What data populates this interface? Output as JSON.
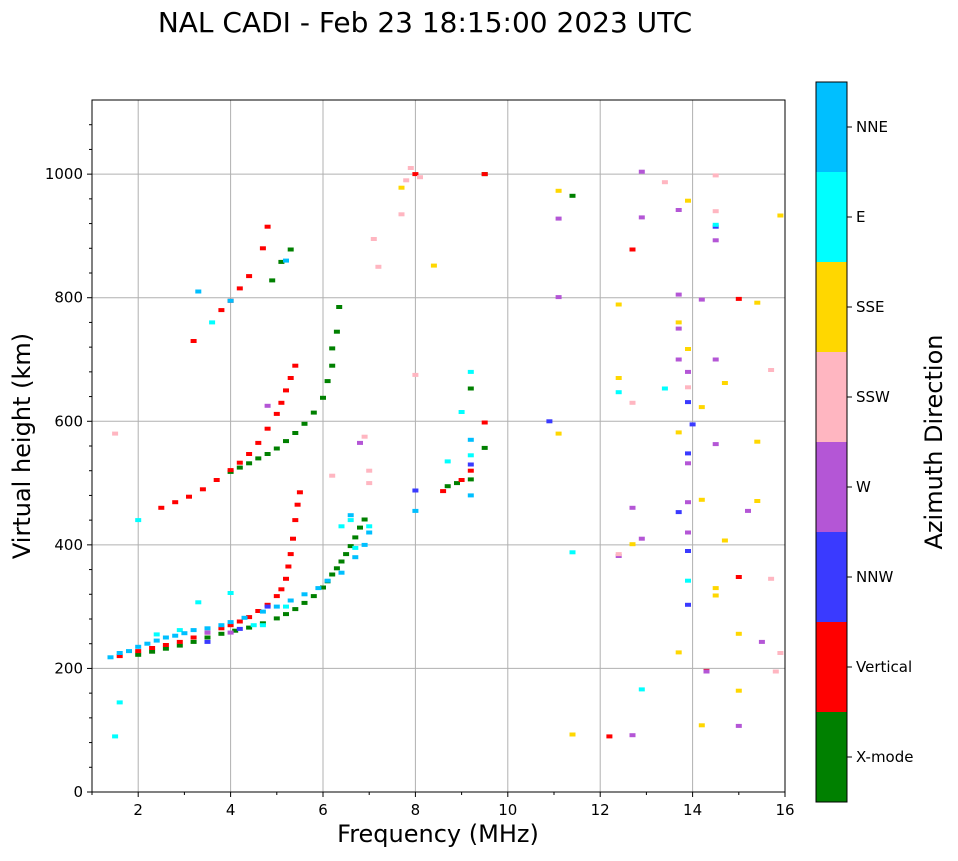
{
  "chart_data": {
    "type": "scatter",
    "title": "NAL CADI - Feb 23 18:15:00 2023 UTC",
    "xlabel": "Frequency (MHz)",
    "ylabel": "Virtual height (km)",
    "xlim": [
      1,
      16
    ],
    "ylim": [
      0,
      1120
    ],
    "xticks": [
      2,
      4,
      6,
      8,
      10,
      12,
      14,
      16
    ],
    "yticks": [
      0,
      200,
      400,
      600,
      800,
      1000
    ],
    "grid": true,
    "colorbar": {
      "label": "Azimuth Direction",
      "categories": [
        {
          "name": "X-mode",
          "color": "#008000"
        },
        {
          "name": "Vertical",
          "color": "#ff0000"
        },
        {
          "name": "NNW",
          "color": "#3a3aff"
        },
        {
          "name": "W",
          "color": "#b456d6"
        },
        {
          "name": "SSW",
          "color": "#ffb6c1"
        },
        {
          "name": "SSE",
          "color": "#ffd700"
        },
        {
          "name": "E",
          "color": "#00ffff"
        },
        {
          "name": "NNE",
          "color": "#00bfff"
        }
      ]
    },
    "series": [
      {
        "name": "X-mode",
        "color": "#008000",
        "points": [
          [
            2.0,
            222
          ],
          [
            2.3,
            227
          ],
          [
            2.6,
            232
          ],
          [
            2.9,
            237
          ],
          [
            3.2,
            243
          ],
          [
            3.5,
            250
          ],
          [
            3.8,
            256
          ],
          [
            4.1,
            261
          ],
          [
            4.4,
            266
          ],
          [
            4.7,
            273
          ],
          [
            5.0,
            281
          ],
          [
            5.2,
            288
          ],
          [
            5.4,
            296
          ],
          [
            5.6,
            306
          ],
          [
            5.8,
            317
          ],
          [
            6.0,
            331
          ],
          [
            6.1,
            341
          ],
          [
            6.2,
            352
          ],
          [
            6.3,
            362
          ],
          [
            6.4,
            373
          ],
          [
            6.5,
            385
          ],
          [
            6.6,
            398
          ],
          [
            6.7,
            412
          ],
          [
            6.8,
            428
          ],
          [
            6.9,
            441
          ],
          [
            4.0,
            518
          ],
          [
            4.2,
            525
          ],
          [
            4.4,
            532
          ],
          [
            4.6,
            540
          ],
          [
            4.8,
            547
          ],
          [
            5.0,
            556
          ],
          [
            5.2,
            568
          ],
          [
            5.4,
            581
          ],
          [
            5.6,
            596
          ],
          [
            5.8,
            614
          ],
          [
            6.0,
            638
          ],
          [
            6.1,
            665
          ],
          [
            6.2,
            690
          ],
          [
            6.2,
            718
          ],
          [
            6.3,
            745
          ],
          [
            6.35,
            785
          ],
          [
            5.1,
            858
          ],
          [
            5.3,
            878
          ],
          [
            4.9,
            828
          ],
          [
            8.7,
            495
          ],
          [
            8.9,
            500
          ],
          [
            9.2,
            506
          ],
          [
            9.2,
            653
          ],
          [
            9.5,
            557
          ],
          [
            11.4,
            965
          ],
          [
            9.5,
            1000
          ]
        ]
      },
      {
        "name": "Vertical",
        "color": "#ff0000",
        "points": [
          [
            1.6,
            220
          ],
          [
            2.0,
            228
          ],
          [
            2.3,
            233
          ],
          [
            2.6,
            238
          ],
          [
            2.9,
            243
          ],
          [
            3.2,
            250
          ],
          [
            3.5,
            258
          ],
          [
            3.8,
            265
          ],
          [
            4.0,
            270
          ],
          [
            4.2,
            276
          ],
          [
            4.4,
            283
          ],
          [
            4.6,
            293
          ],
          [
            4.8,
            303
          ],
          [
            5.0,
            317
          ],
          [
            5.1,
            328
          ],
          [
            5.2,
            345
          ],
          [
            5.25,
            365
          ],
          [
            5.3,
            385
          ],
          [
            5.35,
            410
          ],
          [
            5.4,
            440
          ],
          [
            5.45,
            465
          ],
          [
            5.5,
            485
          ],
          [
            2.5,
            460
          ],
          [
            2.8,
            469
          ],
          [
            3.1,
            478
          ],
          [
            3.4,
            490
          ],
          [
            3.7,
            505
          ],
          [
            4.0,
            521
          ],
          [
            4.2,
            533
          ],
          [
            4.4,
            547
          ],
          [
            4.6,
            565
          ],
          [
            4.8,
            588
          ],
          [
            5.0,
            612
          ],
          [
            5.1,
            630
          ],
          [
            5.2,
            650
          ],
          [
            5.3,
            670
          ],
          [
            5.4,
            690
          ],
          [
            3.2,
            730
          ],
          [
            3.8,
            780
          ],
          [
            4.0,
            795
          ],
          [
            4.2,
            815
          ],
          [
            4.4,
            835
          ],
          [
            4.7,
            880
          ],
          [
            4.8,
            915
          ],
          [
            8.6,
            487
          ],
          [
            9.0,
            505
          ],
          [
            9.2,
            520
          ],
          [
            9.5,
            598
          ],
          [
            9.5,
            1000
          ],
          [
            8.0,
            1000
          ],
          [
            12.2,
            90
          ],
          [
            12.7,
            878
          ],
          [
            15.0,
            348
          ],
          [
            15.0,
            798
          ],
          [
            14.3,
            196
          ]
        ]
      },
      {
        "name": "NNW",
        "color": "#3a3aff",
        "points": [
          [
            3.5,
            243
          ],
          [
            4.2,
            264
          ],
          [
            4.8,
            300
          ],
          [
            8.0,
            488
          ],
          [
            9.2,
            530
          ],
          [
            10.9,
            600
          ],
          [
            13.7,
            453
          ],
          [
            13.9,
            390
          ],
          [
            13.9,
            303
          ],
          [
            13.9,
            548
          ],
          [
            13.9,
            631
          ],
          [
            14.0,
            595
          ],
          [
            14.5,
            915
          ]
        ]
      },
      {
        "name": "W",
        "color": "#b456d6",
        "points": [
          [
            3.5,
            258
          ],
          [
            4.0,
            258
          ],
          [
            4.8,
            625
          ],
          [
            6.8,
            565
          ],
          [
            11.1,
            928
          ],
          [
            11.1,
            801
          ],
          [
            12.4,
            382
          ],
          [
            12.7,
            460
          ],
          [
            12.7,
            92
          ],
          [
            12.9,
            410
          ],
          [
            12.9,
            1004
          ],
          [
            12.9,
            930
          ],
          [
            13.7,
            942
          ],
          [
            13.7,
            805
          ],
          [
            13.7,
            750
          ],
          [
            13.7,
            700
          ],
          [
            13.9,
            680
          ],
          [
            13.9,
            532
          ],
          [
            13.9,
            420
          ],
          [
            13.9,
            469
          ],
          [
            14.2,
            797
          ],
          [
            14.5,
            893
          ],
          [
            14.5,
            700
          ],
          [
            14.5,
            563
          ],
          [
            14.3,
            195
          ],
          [
            15.0,
            107
          ],
          [
            15.2,
            455
          ],
          [
            15.5,
            243
          ]
        ]
      },
      {
        "name": "SSW",
        "color": "#ffb6c1",
        "points": [
          [
            1.5,
            580
          ],
          [
            6.2,
            512
          ],
          [
            6.9,
            575
          ],
          [
            7.0,
            520
          ],
          [
            7.0,
            500
          ],
          [
            7.7,
            935
          ],
          [
            7.8,
            990
          ],
          [
            8.0,
            675
          ],
          [
            7.2,
            850
          ],
          [
            7.1,
            895
          ],
          [
            7.9,
            1010
          ],
          [
            8.1,
            995
          ],
          [
            12.4,
            385
          ],
          [
            12.7,
            630
          ],
          [
            13.4,
            987
          ],
          [
            13.9,
            655
          ],
          [
            14.5,
            940
          ],
          [
            14.5,
            998
          ],
          [
            15.7,
            683
          ],
          [
            15.7,
            345
          ],
          [
            15.8,
            195
          ],
          [
            15.9,
            225
          ]
        ]
      },
      {
        "name": "SSE",
        "color": "#ffd700",
        "points": [
          [
            7.7,
            978
          ],
          [
            8.4,
            852
          ],
          [
            11.1,
            973
          ],
          [
            11.1,
            580
          ],
          [
            11.4,
            93
          ],
          [
            12.4,
            670
          ],
          [
            12.4,
            789
          ],
          [
            12.7,
            401
          ],
          [
            13.7,
            582
          ],
          [
            13.7,
            760
          ],
          [
            13.7,
            226
          ],
          [
            13.9,
            717
          ],
          [
            13.9,
            957
          ],
          [
            14.2,
            623
          ],
          [
            14.2,
            473
          ],
          [
            14.2,
            108
          ],
          [
            14.5,
            330
          ],
          [
            14.5,
            318
          ],
          [
            14.7,
            662
          ],
          [
            14.7,
            407
          ],
          [
            15.0,
            256
          ],
          [
            15.0,
            164
          ],
          [
            15.4,
            567
          ],
          [
            15.4,
            471
          ],
          [
            15.4,
            792
          ],
          [
            15.9,
            933
          ]
        ]
      },
      {
        "name": "E",
        "color": "#00ffff",
        "points": [
          [
            1.5,
            90
          ],
          [
            1.6,
            145
          ],
          [
            2.0,
            440
          ],
          [
            2.4,
            255
          ],
          [
            2.9,
            262
          ],
          [
            3.3,
            307
          ],
          [
            3.6,
            760
          ],
          [
            4.0,
            322
          ],
          [
            4.5,
            270
          ],
          [
            4.7,
            270
          ],
          [
            5.2,
            300
          ],
          [
            6.4,
            430
          ],
          [
            6.6,
            440
          ],
          [
            6.7,
            395
          ],
          [
            7.0,
            430
          ],
          [
            8.7,
            535
          ],
          [
            9.0,
            615
          ],
          [
            9.2,
            680
          ],
          [
            9.2,
            545
          ],
          [
            11.4,
            388
          ],
          [
            12.4,
            647
          ],
          [
            12.9,
            166
          ],
          [
            13.4,
            653
          ],
          [
            13.9,
            342
          ],
          [
            14.5,
            918
          ]
        ]
      },
      {
        "name": "NNE",
        "color": "#00bfff",
        "points": [
          [
            1.4,
            218
          ],
          [
            1.6,
            225
          ],
          [
            1.8,
            228
          ],
          [
            2.0,
            235
          ],
          [
            2.2,
            240
          ],
          [
            2.4,
            245
          ],
          [
            2.6,
            250
          ],
          [
            2.8,
            253
          ],
          [
            3.0,
            257
          ],
          [
            3.2,
            262
          ],
          [
            3.5,
            265
          ],
          [
            3.8,
            270
          ],
          [
            4.0,
            275
          ],
          [
            4.3,
            282
          ],
          [
            4.7,
            292
          ],
          [
            5.0,
            300
          ],
          [
            5.3,
            310
          ],
          [
            5.6,
            320
          ],
          [
            5.9,
            330
          ],
          [
            6.1,
            342
          ],
          [
            6.4,
            355
          ],
          [
            6.7,
            380
          ],
          [
            6.9,
            400
          ],
          [
            7.0,
            420
          ],
          [
            6.6,
            448
          ],
          [
            8.0,
            455
          ],
          [
            3.3,
            810
          ],
          [
            4.0,
            795
          ],
          [
            5.2,
            860
          ],
          [
            9.2,
            570
          ],
          [
            9.2,
            480
          ]
        ]
      }
    ]
  }
}
